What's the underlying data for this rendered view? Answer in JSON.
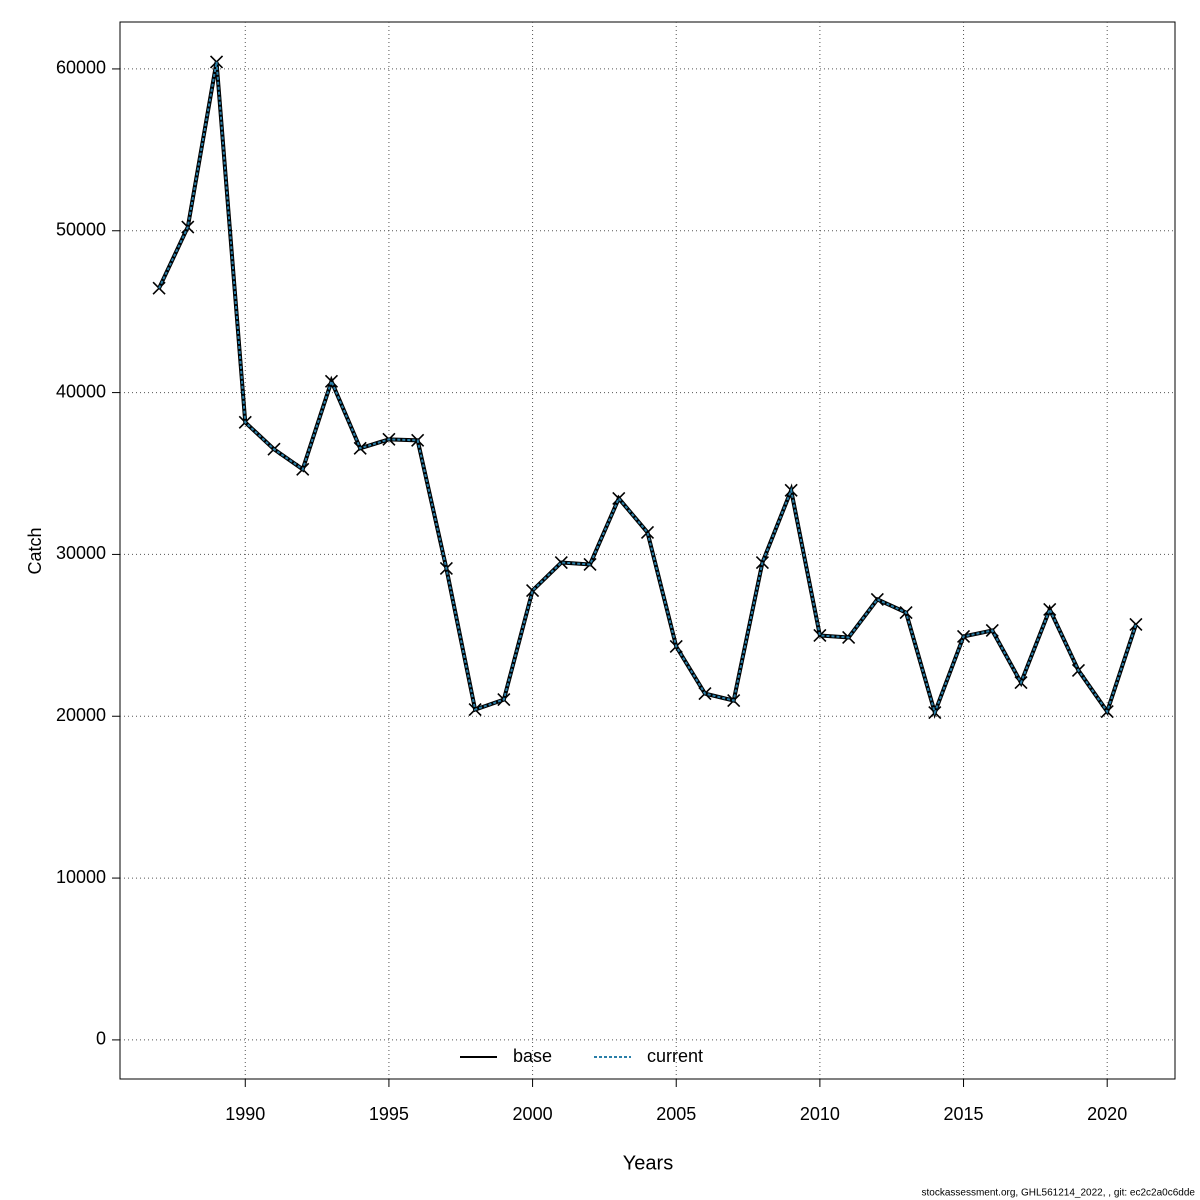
{
  "chart_data": {
    "type": "line",
    "xlabel": "Years",
    "ylabel": "Catch",
    "footer": "stockassessment.org, GHL561214_2022,  , git: ec2c2a0c6dde",
    "x": [
      1987,
      1988,
      1989,
      1990,
      1991,
      1992,
      1993,
      1994,
      1995,
      1996,
      1997,
      1998,
      1999,
      2000,
      2001,
      2002,
      2003,
      2004,
      2005,
      2006,
      2007,
      2008,
      2009,
      2010,
      2011,
      2012,
      2013,
      2014,
      2015,
      2016,
      2017,
      2018,
      2019,
      2020,
      2021
    ],
    "series": [
      {
        "name": "base",
        "color": "#000000",
        "dash": false,
        "markers": true,
        "values": [
          46450,
          50230,
          60430,
          38160,
          36500,
          35260,
          40700,
          36560,
          37110,
          37050,
          29130,
          20410,
          21030,
          27770,
          29500,
          29380,
          33460,
          31360,
          24310,
          21400,
          20970,
          29500,
          33960,
          24990,
          24870,
          27220,
          26410,
          20230,
          24930,
          25300,
          22080,
          26600,
          22830,
          20290,
          25670
        ]
      },
      {
        "name": "current",
        "color": "#2a7fa8",
        "dash": true,
        "markers": false,
        "values": [
          46450,
          50230,
          60430,
          38160,
          36500,
          35260,
          40700,
          36560,
          37110,
          37050,
          29130,
          20410,
          21030,
          27770,
          29500,
          29380,
          33460,
          31360,
          24310,
          21400,
          20970,
          29500,
          33960,
          24990,
          24870,
          27220,
          26410,
          20230,
          24930,
          25300,
          22080,
          26600,
          22830,
          20290,
          25670
        ]
      }
    ],
    "xlim": [
      1985.64,
      2022.36
    ],
    "xticks": [
      1990,
      1995,
      2000,
      2005,
      2010,
      2015,
      2020
    ],
    "ylim": [
      -2416,
      62900
    ],
    "yticks": [
      0,
      10000,
      20000,
      30000,
      40000,
      50000,
      60000
    ],
    "grid": true,
    "legend": "bottom"
  }
}
